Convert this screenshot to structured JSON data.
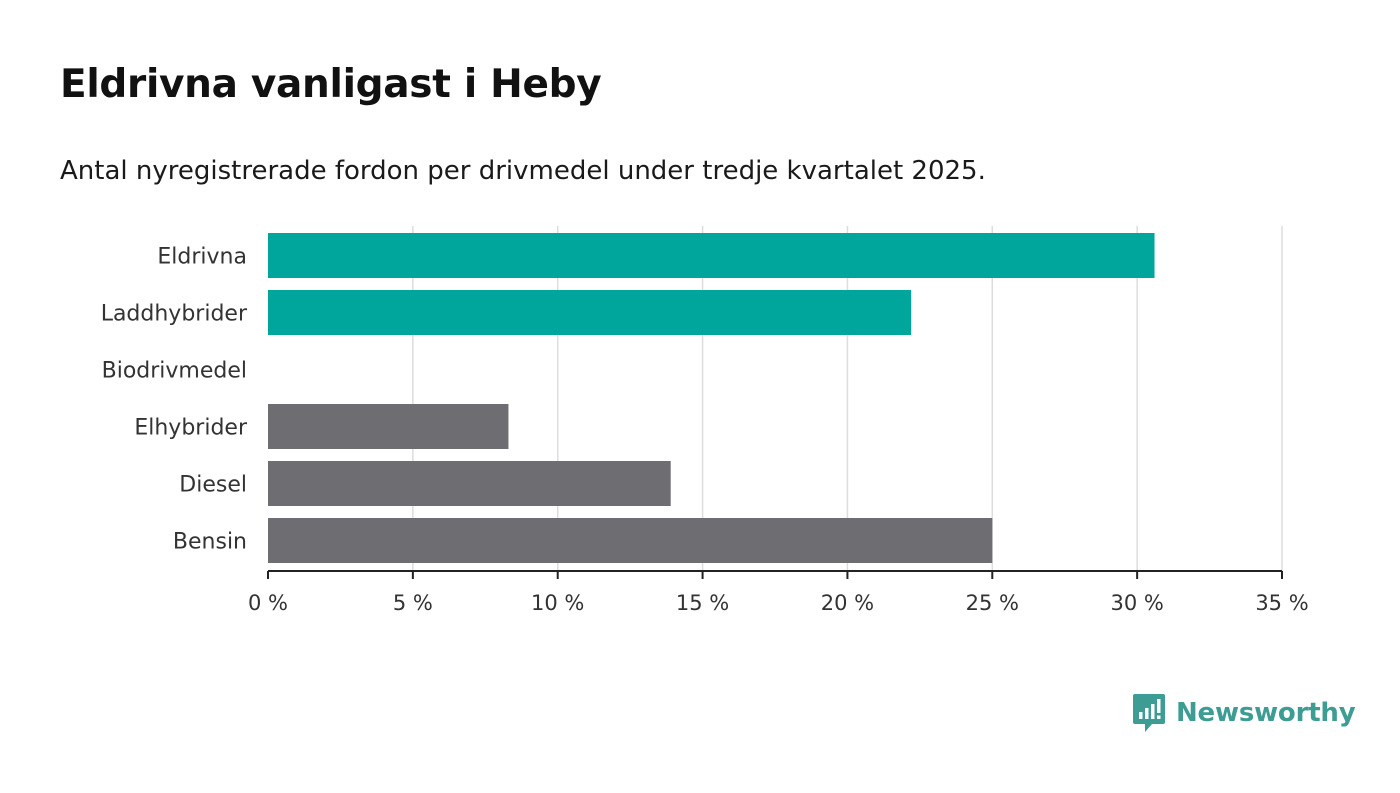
{
  "title": "Eldrivna vanligast i Heby",
  "subtitle": "Antal nyregistrerade fordon per drivmedel under tredje kvartalet 2025.",
  "brand": {
    "name": "Newsworthy",
    "icon": "newsworthy-logo-icon"
  },
  "colors": {
    "highlight": "#00a59b",
    "base": "#6e6d72",
    "grid": "#dddddd",
    "axis": "#222222"
  },
  "chart_data": {
    "type": "bar",
    "orientation": "horizontal",
    "categories": [
      "Eldrivna",
      "Laddhybrider",
      "Biodrivmedel",
      "Elhybrider",
      "Diesel",
      "Bensin"
    ],
    "values": [
      30.6,
      22.2,
      0,
      8.3,
      13.9,
      25.0
    ],
    "highlight": [
      true,
      true,
      false,
      false,
      false,
      false
    ],
    "xlim": [
      0,
      35
    ],
    "xticks": [
      0,
      5,
      10,
      15,
      20,
      25,
      30,
      35
    ],
    "xtick_labels": [
      "0 %",
      "5 %",
      "10 %",
      "15 %",
      "20 %",
      "25 %",
      "30 %",
      "35 %"
    ],
    "grid": true,
    "title": "Eldrivna vanligast i Heby",
    "xlabel": "",
    "ylabel": ""
  }
}
